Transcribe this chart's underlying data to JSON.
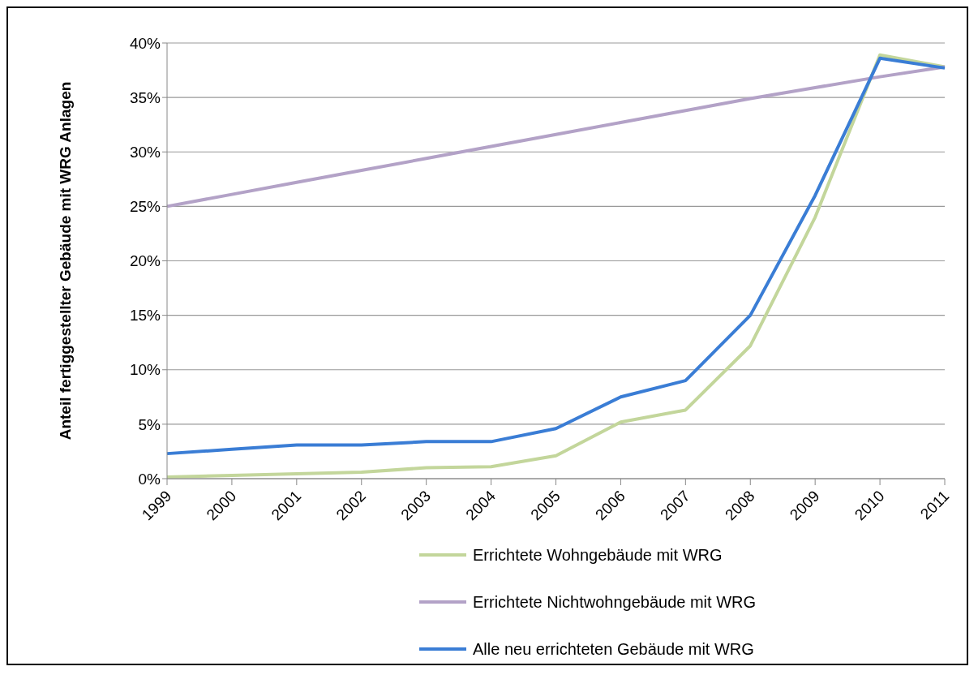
{
  "chart_data": {
    "type": "line",
    "ylabel": "Anteil fertiggestellter Gebäude mit WRG Anlagen",
    "categories": [
      "1999",
      "2000",
      "2001",
      "2002",
      "2003",
      "2004",
      "2005",
      "2006",
      "2007",
      "2008",
      "2009",
      "2010",
      "2011"
    ],
    "series": [
      {
        "name": "Errichtete Wohngebäude mit WRG",
        "color": "#c3d69b",
        "values": [
          0.15,
          0.3,
          0.45,
          0.6,
          1.0,
          1.1,
          2.1,
          5.2,
          6.3,
          12.2,
          24,
          38.9,
          37.8
        ]
      },
      {
        "name": "Errichtete Nichtwohngebäude mit WRG",
        "color": "#b3a2c7",
        "values": [
          25,
          26.1,
          27.2,
          28.3,
          29.4,
          30.5,
          31.6,
          32.7,
          33.8,
          34.9,
          35.9,
          36.9,
          37.8
        ]
      },
      {
        "name": "Alle neu errichteten Gebäude mit WRG",
        "color": "#3a7dd5",
        "values": [
          2.3,
          2.7,
          3.1,
          3.1,
          3.4,
          3.4,
          4.6,
          7.5,
          9.0,
          15,
          26,
          38.6,
          37.7
        ]
      }
    ],
    "ylim": [
      0,
      40
    ],
    "yticks": [
      {
        "value": 0,
        "label": "0%"
      },
      {
        "value": 5,
        "label": "5%"
      },
      {
        "value": 10,
        "label": "10%"
      },
      {
        "value": 15,
        "label": "15%"
      },
      {
        "value": 20,
        "label": "20%"
      },
      {
        "value": 25,
        "label": "25%"
      },
      {
        "value": 30,
        "label": "30%"
      },
      {
        "value": 35,
        "label": "35%"
      },
      {
        "value": 40,
        "label": "40%"
      }
    ],
    "grid": "y",
    "legend": "bottom",
    "marker": "none",
    "line_style": "solid"
  }
}
